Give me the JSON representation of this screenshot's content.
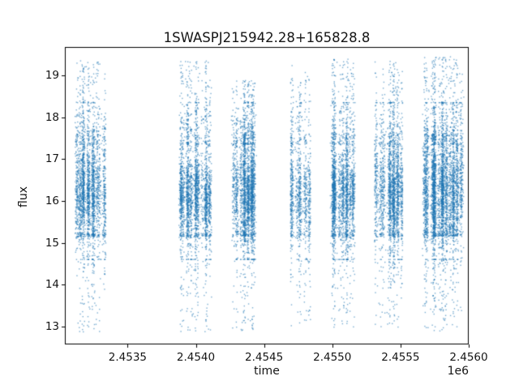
{
  "chart_data": {
    "type": "scatter",
    "title": "1SWASPJ215942.28+165828.8",
    "xlabel": "time",
    "ylabel": "flux",
    "x_offset_label": "1e6",
    "xlim": [
      2453040,
      2456000
    ],
    "ylim": [
      12.57,
      19.68
    ],
    "x_ticks": [
      2453500,
      2454000,
      2454500,
      2455000,
      2455500,
      2456000
    ],
    "x_tick_labels": [
      "2.4535",
      "2.4540",
      "2.4545",
      "2.4550",
      "2.4555",
      "2.4560"
    ],
    "y_ticks": [
      13,
      14,
      15,
      16,
      17,
      18,
      19
    ],
    "y_tick_labels": [
      "13",
      "14",
      "15",
      "16",
      "17",
      "18",
      "19"
    ],
    "grid": false,
    "legend": null,
    "point_color": "#1f77b4",
    "point_alpha": 0.6,
    "marker_size_px": 1.4,
    "axis_color": "#000000",
    "background_color": "#ffffff",
    "seed": 20459,
    "clusters": [
      {
        "t_start": 2453115,
        "t_end": 2453340,
        "n": 2600,
        "flux_min": 12.87,
        "flux_max": 19.35,
        "core_mean": 16.15,
        "core_sd": 0.55,
        "columns": 8
      },
      {
        "t_start": 2453875,
        "t_end": 2454115,
        "n": 2700,
        "flux_min": 12.87,
        "flux_max": 19.35,
        "core_mean": 16.1,
        "core_sd": 0.55,
        "columns": 9
      },
      {
        "t_start": 2454260,
        "t_end": 2454445,
        "n": 2600,
        "flux_min": 12.9,
        "flux_max": 18.88,
        "core_mean": 16.15,
        "core_sd": 0.58,
        "columns": 7
      },
      {
        "t_start": 2454695,
        "t_end": 2454840,
        "n": 1100,
        "flux_min": 12.95,
        "flux_max": 19.25,
        "core_mean": 16.05,
        "core_sd": 0.5,
        "columns": 5
      },
      {
        "t_start": 2454985,
        "t_end": 2455170,
        "n": 2300,
        "flux_min": 12.95,
        "flux_max": 19.4,
        "core_mean": 16.15,
        "core_sd": 0.55,
        "columns": 7
      },
      {
        "t_start": 2455310,
        "t_end": 2455515,
        "n": 2300,
        "flux_min": 12.95,
        "flux_max": 19.35,
        "core_mean": 16.2,
        "core_sd": 0.58,
        "columns": 7
      },
      {
        "t_start": 2455660,
        "t_end": 2455965,
        "n": 4300,
        "flux_min": 12.85,
        "flux_max": 19.45,
        "core_mean": 16.15,
        "core_sd": 0.7,
        "columns": 11
      }
    ]
  }
}
